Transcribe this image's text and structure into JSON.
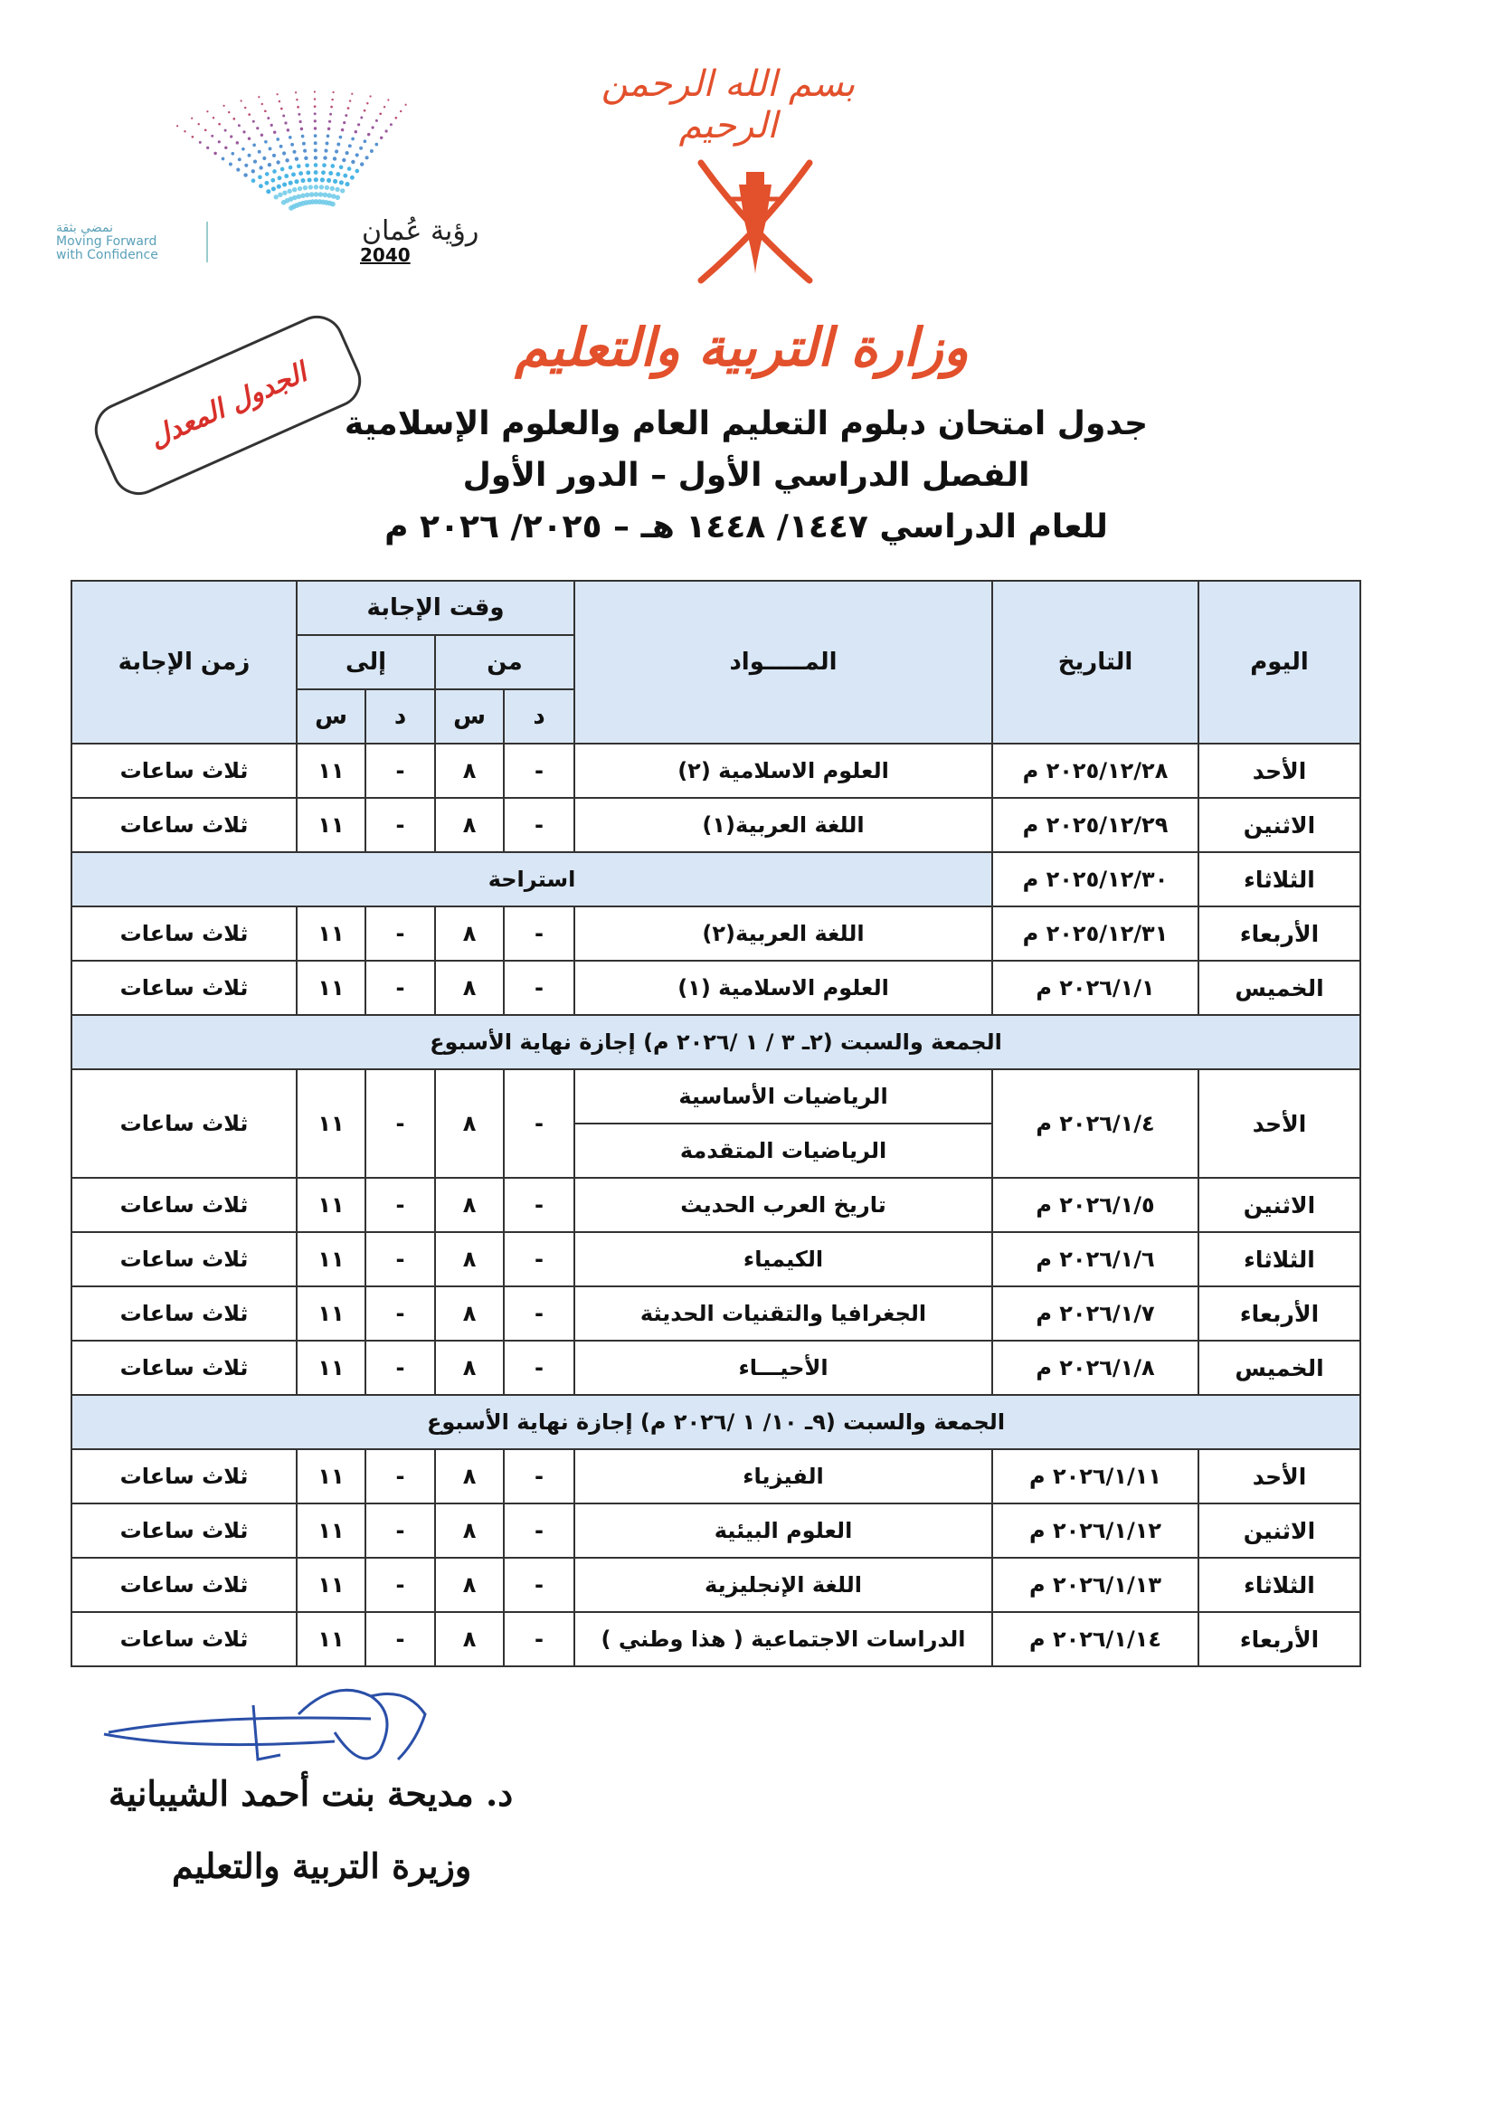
{
  "header": {
    "bismillah": "بسم الله الرحمن الرحيم",
    "ministry_logo_text": "وزارة التربية والتعليم",
    "vision_logo": {
      "arabic": "رؤية عُمان",
      "year": "2040",
      "tagline_ar": "نمضي بثقة",
      "tagline_en_1": "Moving Forward",
      "tagline_en_2": "with Confidence"
    },
    "stamp": "الجدول المعدل",
    "title_1": "جدول امتحان دبلوم التعليم العام والعلوم الإسلامية",
    "title_2": "الفصل الدراسي الأول – الدور الأول",
    "title_3": "للعام الدراسي ١٤٤٧/ ١٤٤٨ هـ –  ٢٠٢٥/ ٢٠٢٦ م"
  },
  "colors": {
    "header_fill": "#d9e6f5",
    "accent_red": "#e2502c"
  },
  "table": {
    "headers": {
      "day": "اليوم",
      "date": "التاريخ",
      "subject": "المـــــواد",
      "answer_time": "وقت الإجابة",
      "from": "من",
      "to": "إلى",
      "minute": "د",
      "hour": "س",
      "duration": "زمن الإجابة"
    },
    "rows": [
      {
        "type": "exam",
        "day": "الأحد",
        "date": "٢٠٢٥/١٢/٢٨ م",
        "subjects": [
          "العلوم الاسلامية (٢)"
        ],
        "from_d": "-",
        "from_s": "٨",
        "to_d": "-",
        "to_s": "١١",
        "duration": "ثلاث ساعات"
      },
      {
        "type": "exam",
        "day": "الاثنين",
        "date": "٢٠٢٥/١٢/٢٩ م",
        "subjects": [
          "اللغة العربية(١)"
        ],
        "from_d": "-",
        "from_s": "٨",
        "to_d": "-",
        "to_s": "١١",
        "duration": "ثلاث ساعات"
      },
      {
        "type": "rest",
        "day": "الثلاثاء",
        "date": "٢٠٢٥/١٢/٣٠ م",
        "text": "استراحة"
      },
      {
        "type": "exam",
        "day": "الأربعاء",
        "date": "٢٠٢٥/١٢/٣١ م",
        "subjects": [
          "اللغة العربية(٢)"
        ],
        "from_d": "-",
        "from_s": "٨",
        "to_d": "-",
        "to_s": "١١",
        "duration": "ثلاث ساعات"
      },
      {
        "type": "exam",
        "day": "الخميس",
        "date": "٢٠٢٦/١/١ م",
        "subjects": [
          "العلوم الاسلامية (١)"
        ],
        "from_d": "-",
        "from_s": "٨",
        "to_d": "-",
        "to_s": "١١",
        "duration": "ثلاث ساعات"
      },
      {
        "type": "weekend",
        "text": "الجمعة والسبت (٢ـ ٣ / ١ /٢٠٢٦ م) إجازة نهاية الأسبوع"
      },
      {
        "type": "exam",
        "day": "الأحد",
        "date": "٢٠٢٦/١/٤ م",
        "subjects": [
          "الرياضيات الأساسية",
          "الرياضيات المتقدمة"
        ],
        "from_d": "-",
        "from_s": "٨",
        "to_d": "-",
        "to_s": "١١",
        "duration": "ثلاث ساعات"
      },
      {
        "type": "exam",
        "day": "الاثنين",
        "date": "٢٠٢٦/١/٥ م",
        "subjects": [
          "تاريخ العرب الحديث"
        ],
        "from_d": "-",
        "from_s": "٨",
        "to_d": "-",
        "to_s": "١١",
        "duration": "ثلاث ساعات"
      },
      {
        "type": "exam",
        "day": "الثلاثاء",
        "date": "٢٠٢٦/١/٦ م",
        "subjects": [
          "الكيمياء"
        ],
        "from_d": "-",
        "from_s": "٨",
        "to_d": "-",
        "to_s": "١١",
        "duration": "ثلاث ساعات"
      },
      {
        "type": "exam",
        "day": "الأربعاء",
        "date": "٢٠٢٦/١/٧ م",
        "subjects": [
          "الجغرافيا والتقنيات الحديثة"
        ],
        "from_d": "-",
        "from_s": "٨",
        "to_d": "-",
        "to_s": "١١",
        "duration": "ثلاث ساعات"
      },
      {
        "type": "exam",
        "day": "الخميس",
        "date": "٢٠٢٦/١/٨ م",
        "subjects": [
          "الأحيـــاء"
        ],
        "from_d": "-",
        "from_s": "٨",
        "to_d": "-",
        "to_s": "١١",
        "duration": "ثلاث ساعات"
      },
      {
        "type": "weekend",
        "text": "الجمعة والسبت (٩ـ ١٠/ ١ /٢٠٢٦ م) إجازة نهاية الأسبوع"
      },
      {
        "type": "exam",
        "day": "الأحد",
        "date": "٢٠٢٦/١/١١ م",
        "subjects": [
          "الفيزياء"
        ],
        "from_d": "-",
        "from_s": "٨",
        "to_d": "-",
        "to_s": "١١",
        "duration": "ثلاث ساعات"
      },
      {
        "type": "exam",
        "day": "الاثنين",
        "date": "٢٠٢٦/١/١٢ م",
        "subjects": [
          "العلوم البيئية"
        ],
        "from_d": "-",
        "from_s": "٨",
        "to_d": "-",
        "to_s": "١١",
        "duration": "ثلاث ساعات"
      },
      {
        "type": "exam",
        "day": "الثلاثاء",
        "date": "٢٠٢٦/١/١٣ م",
        "subjects": [
          "اللغة الإنجليزية"
        ],
        "from_d": "-",
        "from_s": "٨",
        "to_d": "-",
        "to_s": "١١",
        "duration": "ثلاث ساعات"
      },
      {
        "type": "exam",
        "day": "الأربعاء",
        "date": "٢٠٢٦/١/١٤ م",
        "subjects": [
          "الدراسات الاجتماعية ( هذا وطني )"
        ],
        "from_d": "-",
        "from_s": "٨",
        "to_d": "-",
        "to_s": "١١",
        "duration": "ثلاث ساعات"
      }
    ]
  },
  "footer": {
    "signatory_name": "د. مديحة بنت أحمد الشيبانية",
    "signatory_title": "وزيرة التربية والتعليم"
  }
}
